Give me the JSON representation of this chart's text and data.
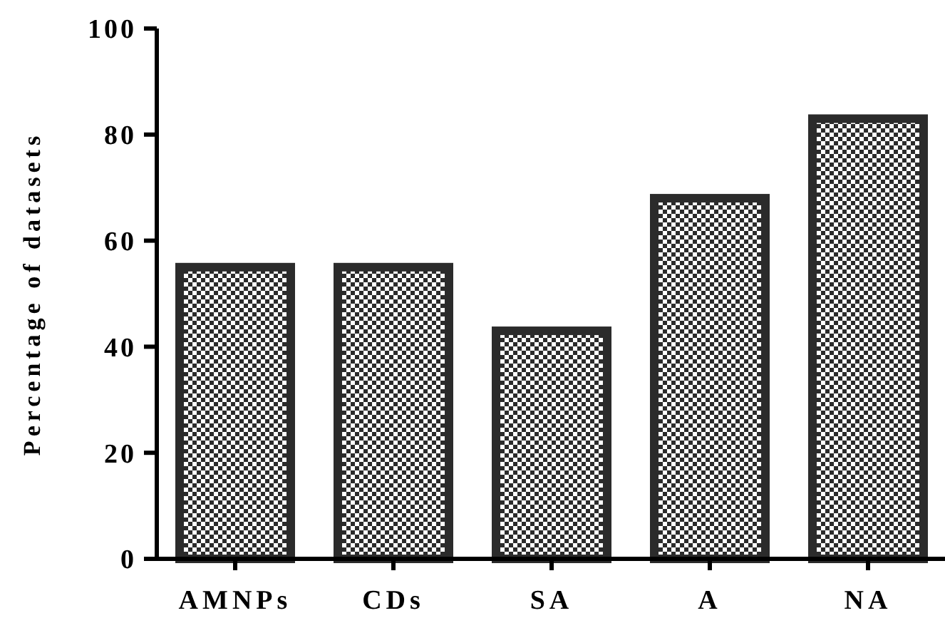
{
  "chart_data": {
    "type": "bar",
    "ylabel": "Percentage of datasets",
    "categories": [
      "AMNPs",
      "CDs",
      "SA",
      "A",
      "NA"
    ],
    "values": [
      55,
      55,
      43,
      68,
      83
    ],
    "color": "#2b2b2b",
    "ylim": [
      0,
      100
    ],
    "yticks": [
      0,
      20,
      40,
      60,
      80,
      100
    ],
    "grid": false
  }
}
